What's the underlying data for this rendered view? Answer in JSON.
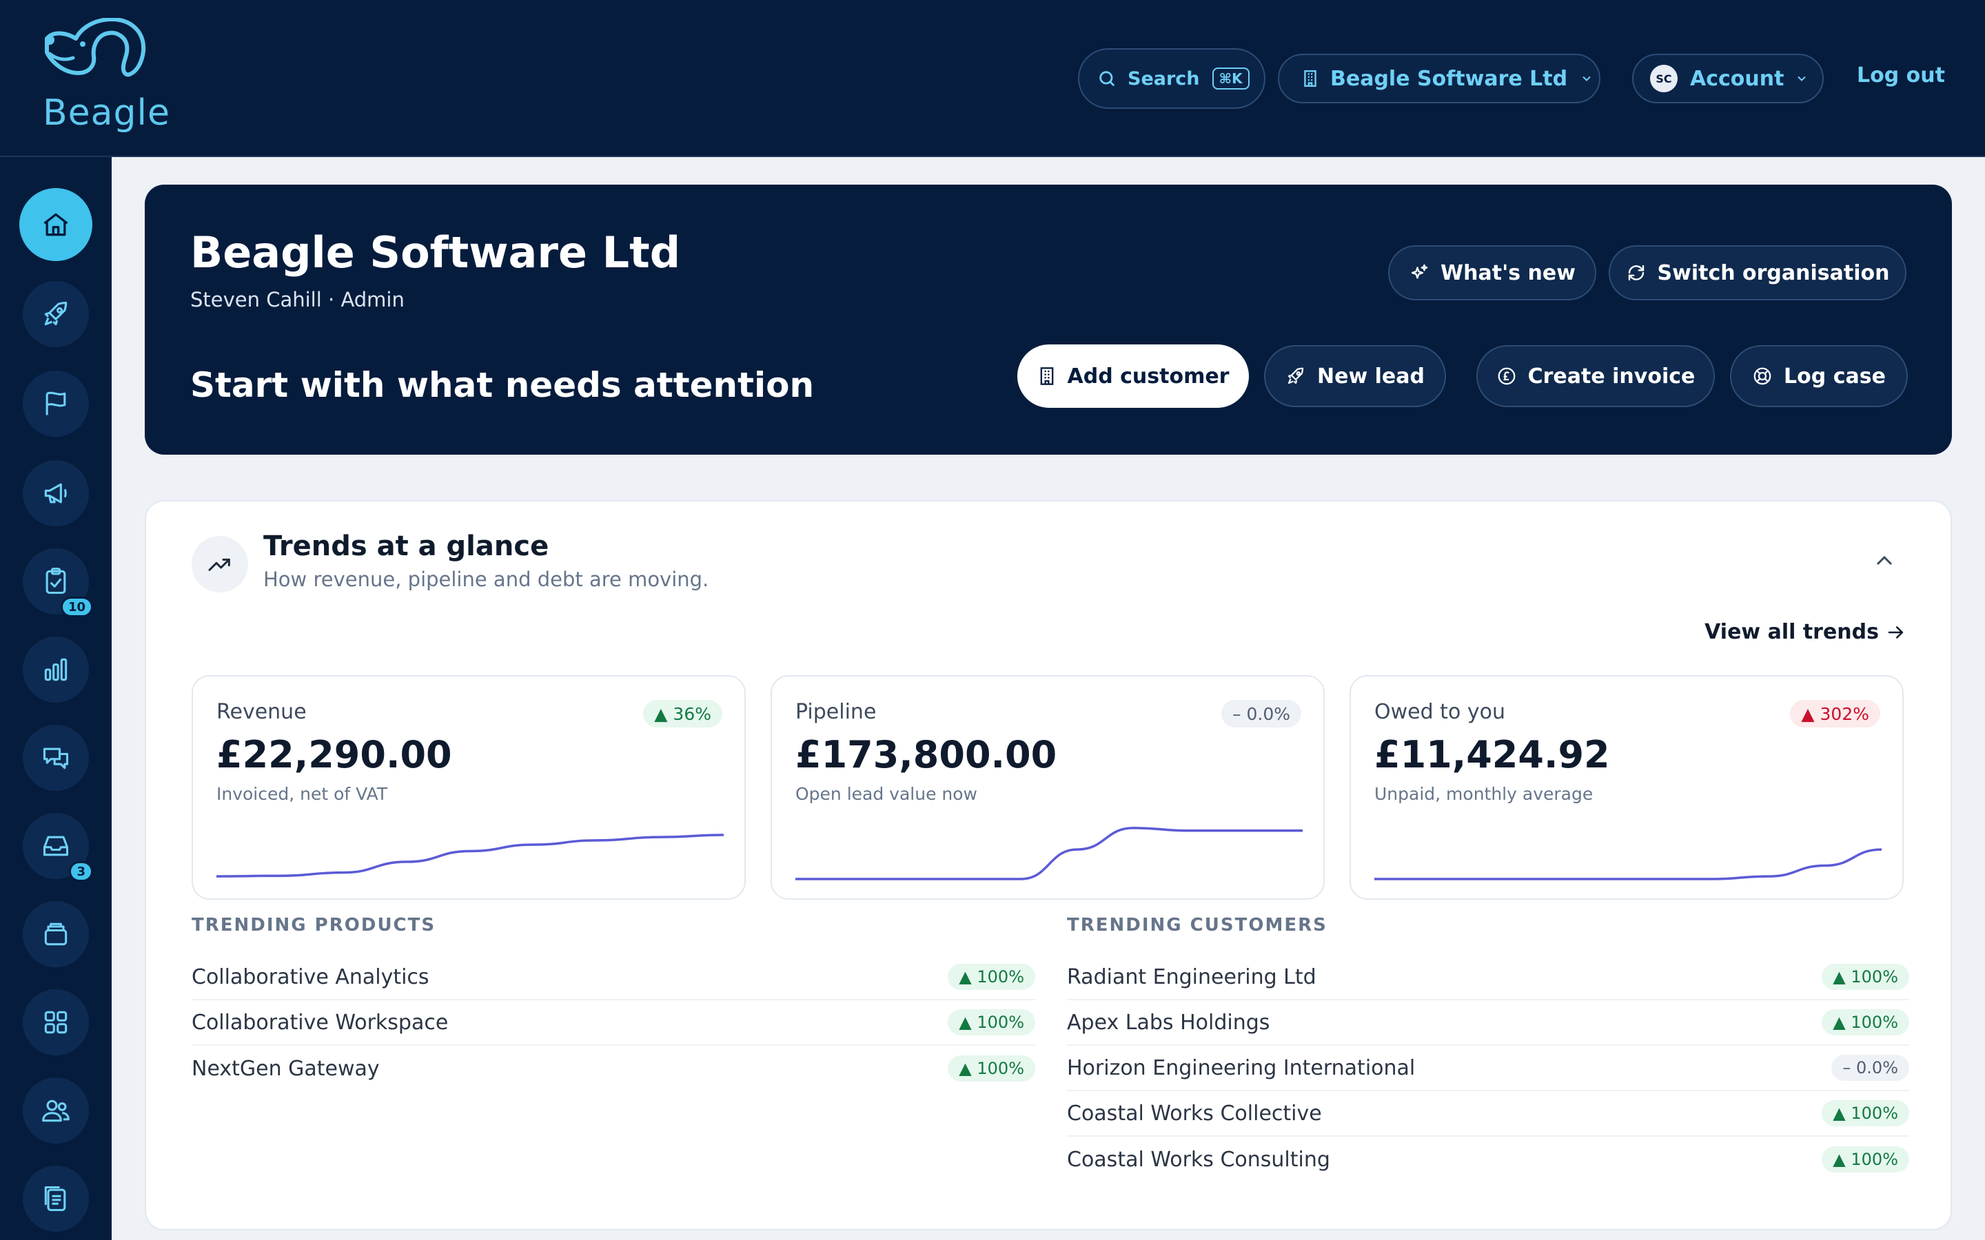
{
  "brand": {
    "name": "Beagle"
  },
  "topbar": {
    "search_label": "Search",
    "search_shortcut": "⌘K",
    "org_label": "Beagle Software Ltd",
    "account_initials": "SC",
    "account_label": "Account",
    "logout_label": "Log out"
  },
  "sidebar": {
    "items": [
      {
        "name": "home",
        "icon": "home-icon",
        "active": true
      },
      {
        "name": "leads",
        "icon": "rocket-icon"
      },
      {
        "name": "goals",
        "icon": "flag-icon"
      },
      {
        "name": "campaigns",
        "icon": "megaphone-icon"
      },
      {
        "name": "tasks",
        "icon": "clipboard-check-icon",
        "badge": "10"
      },
      {
        "name": "reports",
        "icon": "bar-chart-icon"
      },
      {
        "name": "conversations",
        "icon": "chat-icon"
      },
      {
        "name": "inbox",
        "icon": "inbox-icon",
        "badge": "3"
      },
      {
        "name": "archive",
        "icon": "archive-icon"
      },
      {
        "name": "apps",
        "icon": "grid-icon"
      },
      {
        "name": "people",
        "icon": "users-icon"
      },
      {
        "name": "documents",
        "icon": "documents-icon"
      }
    ]
  },
  "hero": {
    "title": "Beagle Software Ltd",
    "subtitle": "Steven Cahill · Admin",
    "whats_new_label": "What's new",
    "switch_org_label": "Switch organisation",
    "cta_text": "Start with what needs attention",
    "actions": {
      "add_customer": "Add customer",
      "new_lead": "New lead",
      "create_invoice": "Create invoice",
      "log_case": "Log case"
    }
  },
  "trends": {
    "title": "Trends at a glance",
    "subtitle": "How revenue, pipeline and debt are moving.",
    "view_all_label": "View all trends",
    "metrics": [
      {
        "label": "Revenue",
        "value": "£22,290.00",
        "note": "Invoiced, net of VAT",
        "change": "▲ 36%",
        "direction": "up",
        "sparkline": [
          0.05,
          0.06,
          0.12,
          0.32,
          0.52,
          0.64,
          0.72,
          0.78,
          0.82
        ]
      },
      {
        "label": "Pipeline",
        "value": "£173,800.00",
        "note": "Open lead value now",
        "change": "– 0.0%",
        "direction": "flat",
        "sparkline": [
          0.0,
          0.0,
          0.0,
          0.0,
          0.0,
          0.55,
          0.95,
          0.9,
          0.9,
          0.9
        ]
      },
      {
        "label": "Owed to you",
        "value": "£11,424.92",
        "note": "Unpaid, monthly average",
        "change": "▲ 302%",
        "direction": "down",
        "sparkline": [
          0.0,
          0.0,
          0.0,
          0.0,
          0.0,
          0.0,
          0.0,
          0.05,
          0.25,
          0.55
        ]
      }
    ],
    "products_heading": "TRENDING PRODUCTS",
    "products": [
      {
        "name": "Collaborative Analytics",
        "change": "▲ 100%",
        "direction": "up"
      },
      {
        "name": "Collaborative Workspace",
        "change": "▲ 100%",
        "direction": "up"
      },
      {
        "name": "NextGen Gateway",
        "change": "▲ 100%",
        "direction": "up"
      }
    ],
    "customers_heading": "TRENDING CUSTOMERS",
    "customers": [
      {
        "name": "Radiant Engineering Ltd",
        "change": "▲ 100%",
        "direction": "up"
      },
      {
        "name": "Apex Labs Holdings",
        "change": "▲ 100%",
        "direction": "up"
      },
      {
        "name": "Horizon Engineering International",
        "change": "– 0.0%",
        "direction": "flat"
      },
      {
        "name": "Coastal Works Collective",
        "change": "▲ 100%",
        "direction": "up"
      },
      {
        "name": "Coastal Works Consulting",
        "change": "▲ 100%",
        "direction": "up"
      }
    ]
  },
  "colors": {
    "navy": "#061c3d",
    "accent": "#3fc2ec",
    "sparkline": "#5b5bd6",
    "up": "#137a42",
    "down": "#c8102e"
  }
}
